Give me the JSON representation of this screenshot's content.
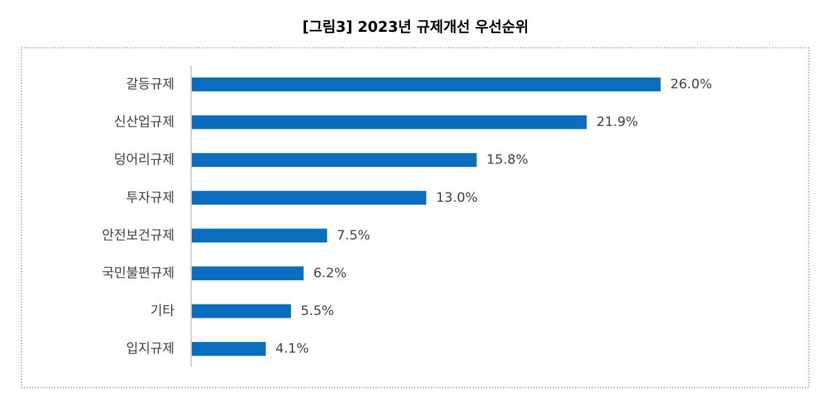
{
  "chart_data": {
    "type": "bar",
    "orientation": "horizontal",
    "title": "[그림3]  2023년  규제개선  우선순위",
    "categories": [
      "갈등규제",
      "신산업규제",
      "덩어리규제",
      "투자규제",
      "안전보건규제",
      "국민불편규제",
      "기타",
      "입지규제"
    ],
    "values": [
      26.0,
      21.9,
      15.8,
      13.0,
      7.5,
      6.2,
      5.5,
      4.1
    ],
    "value_labels": [
      "26.0%",
      "21.9%",
      "15.8%",
      "13.0%",
      "7.5%",
      "6.2%",
      "5.5%",
      "4.1%"
    ],
    "color": "#0b6dbf"
  }
}
